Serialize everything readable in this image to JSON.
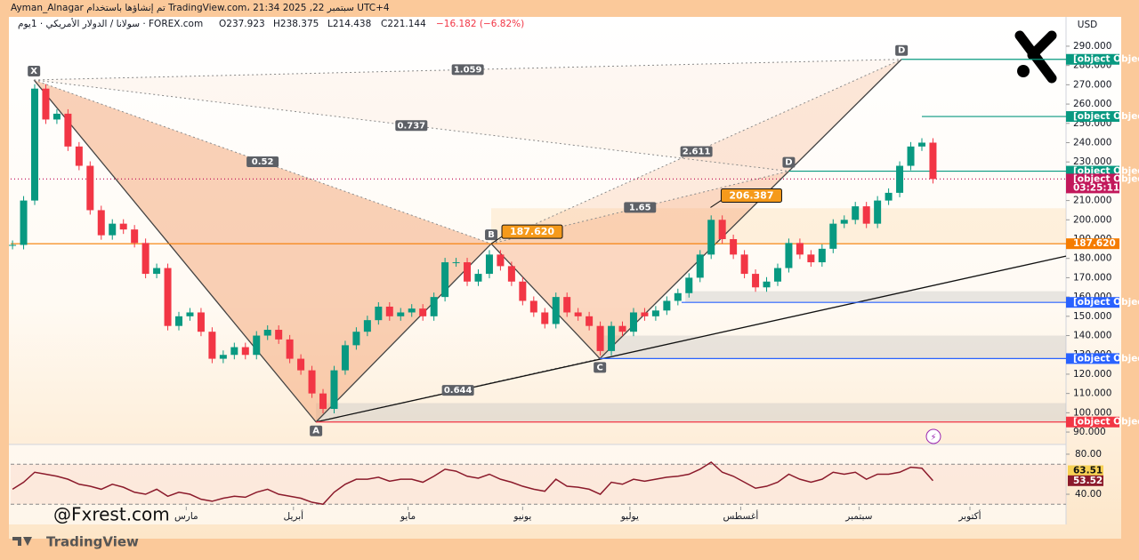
{
  "header": {
    "author_line": "Ayman_Alnagar تم إنشاؤها باستخدام TradingView.com، 21:34 2025 ,22 سبتمبر UTC+4",
    "symbol": "سولانا / الدولار الأمريكي · 1يوم · FOREX.com",
    "open": "O237.923",
    "high": "H238.375",
    "low": "L214.438",
    "close": "C221.144",
    "change": "−16.182 (−6.82%)"
  },
  "chart_data": {
    "type": "candlestick",
    "currency": "USD",
    "x": [
      0,
      3,
      6,
      9,
      12,
      15,
      18,
      21,
      24,
      27,
      30,
      33,
      36,
      39,
      42,
      45,
      48,
      51,
      54,
      57,
      60,
      63,
      66,
      69,
      72,
      75,
      78,
      81,
      84,
      87,
      90,
      93,
      96,
      99,
      102,
      105,
      108,
      111,
      114,
      117,
      120,
      123,
      126,
      129,
      132,
      135,
      138,
      141,
      144,
      147,
      150,
      153,
      156,
      159,
      162,
      165,
      168,
      171,
      174,
      177,
      180,
      183,
      186,
      189,
      192,
      195,
      198,
      201,
      204,
      207,
      210,
      213,
      216,
      219,
      222,
      225,
      228,
      231,
      234,
      237,
      240,
      243,
      246,
      249
    ],
    "close": [
      187,
      210,
      268,
      252,
      255,
      238,
      228,
      205,
      192,
      198,
      195,
      188,
      172,
      175,
      145,
      150,
      152,
      142,
      128,
      130,
      134,
      130,
      140,
      143,
      138,
      128,
      122,
      110,
      102,
      122,
      135,
      142,
      148,
      155,
      150,
      152,
      154,
      150,
      160,
      178,
      178,
      168,
      172,
      182,
      176,
      168,
      158,
      152,
      146,
      160,
      152,
      150,
      145,
      132,
      145,
      142,
      152,
      150,
      153,
      158,
      162,
      170,
      182,
      200,
      190,
      182,
      172,
      165,
      168,
      175,
      188,
      182,
      178,
      185,
      198,
      200,
      207,
      198,
      210,
      214,
      228,
      238,
      240,
      221.144
    ],
    "up_color": "#089981",
    "down_color": "#f23645",
    "xlim": [
      -0.5,
      285
    ],
    "xticks": [
      {
        "value": 47,
        "label": "مارس"
      },
      {
        "value": 76,
        "label": "أبريل"
      },
      {
        "value": 107,
        "label": "مايو"
      },
      {
        "value": 138,
        "label": "يونيو"
      },
      {
        "value": 167,
        "label": "يوليو"
      },
      {
        "value": 197,
        "label": "أغسطس"
      },
      {
        "value": 229,
        "label": "سبتمبر"
      },
      {
        "value": 259,
        "label": "أكتوبر"
      }
    ],
    "ylim": [
      84.5,
      303.8
    ],
    "yticks": [
      {
        "value": 90,
        "label": "90.000"
      },
      {
        "value": 100,
        "label": "100.000"
      },
      {
        "value": 110,
        "label": "110.000"
      },
      {
        "value": 120,
        "label": "120.000"
      },
      {
        "value": 130,
        "label": "130.000"
      },
      {
        "value": 140,
        "label": "140.000"
      },
      {
        "value": 150,
        "label": "150.000"
      },
      {
        "value": 160,
        "label": "160.000"
      },
      {
        "value": 170,
        "label": "170.000"
      },
      {
        "value": 180,
        "label": "180.000"
      },
      {
        "value": 190,
        "label": "190.000"
      },
      {
        "value": 200,
        "label": "200.000"
      },
      {
        "value": 210,
        "label": "210.000"
      },
      {
        "value": 220,
        "label": "220.000"
      },
      {
        "value": 230,
        "label": "230.000"
      },
      {
        "value": 240,
        "label": "240.000"
      },
      {
        "value": 250,
        "label": "250.000"
      },
      {
        "value": 260,
        "label": "260.000"
      },
      {
        "value": 270,
        "label": "270.000"
      },
      {
        "value": 280,
        "label": "280.000"
      },
      {
        "value": 290,
        "label": "290.000"
      }
    ],
    "levels": [
      {
        "value": 283.185,
        "color": "#089981"
      },
      {
        "value": 253.558,
        "color": "#089981"
      },
      {
        "value": 225.219,
        "color": "#089981"
      },
      {
        "value": 221.144,
        "color": "#c2185b",
        "time": "03:25:11"
      },
      {
        "value": 187.62,
        "label": "187.620",
        "color": "#f57c00"
      },
      {
        "value": 157.205,
        "color": "#2962ff"
      },
      {
        "value": 128.084,
        "color": "#2962ff"
      },
      {
        "value": 95.212,
        "color": "#f23645"
      }
    ],
    "zones": [
      [
        95.212,
        105
      ],
      [
        128.084,
        140
      ],
      [
        157.205,
        163
      ],
      [
        187.62,
        206
      ]
    ],
    "callouts": [
      {
        "value": 187.62,
        "label": "187.620"
      },
      206.387
    ],
    "pattern": {
      "points": [
        {
          "label": "X",
          "x": 5.8,
          "y": 272.5
        },
        {
          "label": "A",
          "x": 82.1,
          "y": 95.212
        },
        {
          "label": "B",
          "x": 129.5,
          "y": 187.62
        },
        {
          "label": "C",
          "x": 158.9,
          "y": 128.084
        },
        {
          "label": "D",
          "x": 210,
          "y": 225.219
        },
        {
          "label": "D",
          "x": 240.5,
          "y": 283.185
        }
      ],
      "ratios": [
        0.52,
        0.737,
        1.059,
        2.611,
        1.65,
        0.644
      ]
    },
    "rsi": {
      "values": [
        45,
        52,
        62,
        60,
        58,
        55,
        50,
        48,
        45,
        50,
        47,
        42,
        40,
        45,
        38,
        42,
        40,
        35,
        33,
        36,
        38,
        37,
        42,
        45,
        40,
        38,
        36,
        32,
        30,
        42,
        50,
        55,
        55,
        57,
        53,
        55,
        55,
        52,
        58,
        65,
        63,
        58,
        56,
        60,
        55,
        52,
        48,
        45,
        43,
        55,
        48,
        47,
        45,
        40,
        52,
        50,
        55,
        53,
        55,
        57,
        58,
        60,
        65,
        72,
        62,
        58,
        52,
        46,
        48,
        52,
        60,
        55,
        52,
        55,
        62,
        60,
        62,
        55,
        60,
        60,
        62,
        67,
        66,
        53.52
      ],
      "color": "#8b1a2b",
      "ylim": [
        27.6,
        85.3
      ],
      "yticks": [
        {
          "value": 40,
          "label": "40.00"
        },
        {
          "value": 80,
          "label": "80.00"
        }
      ],
      "bands": [
        30,
        70
      ],
      "last_values": [
        {
          "value": 63.51,
          "color": "#f7d154"
        },
        {
          "value": 53.52,
          "color": "#8b1a2b"
        }
      ]
    },
    "watermark": "@Fxrest.com",
    "brand": "TradingView"
  }
}
